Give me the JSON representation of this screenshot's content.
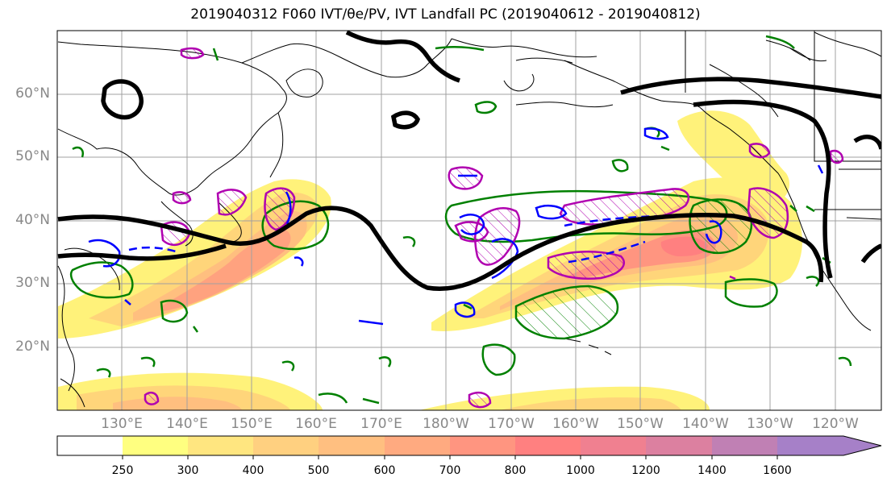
{
  "title": "2019040312 F060 IVT/θe/PV, IVT Landfall PC (2019040612 - 2019040812)",
  "map": {
    "lat_labels": [
      "60°N",
      "50°N",
      "40°N",
      "30°N",
      "20°N"
    ],
    "lon_labels": [
      "130°E",
      "140°E",
      "150°E",
      "160°E",
      "170°E",
      "180°W",
      "170°W",
      "160°W",
      "150°W",
      "140°W",
      "130°W",
      "120°W"
    ],
    "extent": {
      "lon_min": 120,
      "lon_max": 247,
      "lat_min": 10,
      "lat_max": 70
    }
  },
  "colorbar": {
    "levels": [
      "250",
      "300",
      "400",
      "500",
      "600",
      "700",
      "800",
      "1000",
      "1200",
      "1400",
      "1600"
    ],
    "colors": [
      "#ffffff",
      "#ffff80",
      "#ffe680",
      "#ffd080",
      "#ffbf80",
      "#ffaa80",
      "#ff9580",
      "#ff8080",
      "#f08090",
      "#dc80a0",
      "#c080b4",
      "#a680c8"
    ],
    "extend": "max"
  },
  "colors": {
    "ivt_fill": "#ffe066",
    "jet_contour": "#000000",
    "pv_contour": "#008000",
    "theta_contour": "#b000b0",
    "neg_contour": "#0000ff"
  }
}
